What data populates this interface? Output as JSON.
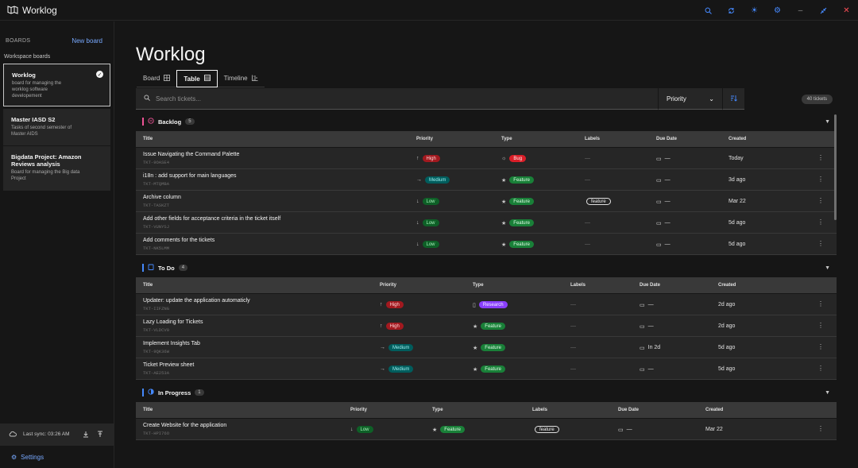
{
  "app": {
    "title": "Worklog"
  },
  "titlebar_icons": [
    "search-icon",
    "sync-icon",
    "theme-icon",
    "settings-icon",
    "minimize-icon",
    "shrink-icon",
    "close-icon"
  ],
  "sidebar": {
    "boards_label": "BOARDS",
    "new_board": "New board",
    "workspace_label": "Workspace boards",
    "boards": [
      {
        "title": "Worklog",
        "desc": "board for managing the worklog software developement",
        "active": true
      },
      {
        "title": "Master IASD S2",
        "desc": "Tasks of second semester of Master AIDS",
        "active": false
      },
      {
        "title": "Bigdata Project: Amazon Reviews analysis",
        "desc": "Board for managing the Big data Project",
        "active": false
      }
    ],
    "last_sync": "Last sync: 03:26 AM",
    "settings_label": "Settings"
  },
  "main": {
    "page_title": "Worklog",
    "tabs": [
      {
        "label": "Board"
      },
      {
        "label": "Table"
      },
      {
        "label": "Timeline"
      }
    ],
    "search_placeholder": "Search tickets...",
    "priority_filter": "Priority",
    "ticket_count": "40 tickets"
  },
  "columns": {
    "title": "Title",
    "priority": "Priority",
    "type": "Type",
    "labels": "Labels",
    "due": "Due Date",
    "created": "Created"
  },
  "groups": [
    {
      "name": "Backlog",
      "count": "5",
      "color": "#ee5396",
      "rows": [
        {
          "title": "Issue Navigating the Command Palette",
          "id": "TKT-9OASE4",
          "priority": "High",
          "type": "Bug",
          "label": "—",
          "due": "—",
          "created": "Today"
        },
        {
          "title": "i18n : add support for main languages",
          "id": "TKT-MTQMBA",
          "priority": "Medium",
          "type": "Feature",
          "label": "—",
          "due": "—",
          "created": "3d ago"
        },
        {
          "title": "Archive column",
          "id": "TKT-TASKZT",
          "priority": "Low",
          "type": "Feature",
          "label": "feature",
          "due": "—",
          "created": "Mar 22"
        },
        {
          "title": "Add other fields for acceptance criteria in the ticket itself",
          "id": "TKT-VUNYSJ",
          "priority": "Low",
          "type": "Feature",
          "label": "—",
          "due": "—",
          "created": "5d ago"
        },
        {
          "title": "Add comments for the tickets",
          "id": "TKT-NK5LMM",
          "priority": "Low",
          "type": "Feature",
          "label": "—",
          "due": "—",
          "created": "5d ago"
        }
      ]
    },
    {
      "name": "To Do",
      "count": "4",
      "color": "#4589ff",
      "rows": [
        {
          "title": "Updater: update the application automaticly",
          "id": "TKT-IIFZNG",
          "priority": "High",
          "type": "Research",
          "label": "—",
          "due": "—",
          "created": "2d ago"
        },
        {
          "title": "Lazy Loading for Tickets",
          "id": "TKT-VLDCV0",
          "priority": "High",
          "type": "Feature",
          "label": "—",
          "due": "—",
          "created": "2d ago"
        },
        {
          "title": "Implement Insights Tab",
          "id": "TKT-9QK36W",
          "priority": "Medium",
          "type": "Feature",
          "label": "—",
          "due": "In 2d",
          "created": "5d ago"
        },
        {
          "title": "Ticket Preview sheet",
          "id": "TKT-AE253A",
          "priority": "Medium",
          "type": "Feature",
          "label": "—",
          "due": "—",
          "created": "5d ago"
        }
      ]
    },
    {
      "name": "In Progress",
      "count": "1",
      "color": "#4589ff",
      "rows": [
        {
          "title": "Create Website for the application",
          "id": "TKT-HPI76O",
          "priority": "Low",
          "type": "Feature",
          "label": "feature",
          "due": "—",
          "created": "Mar 22"
        }
      ]
    }
  ]
}
